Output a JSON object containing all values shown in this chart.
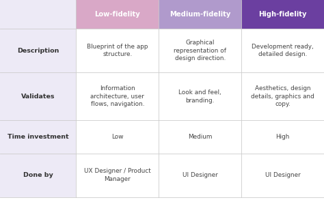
{
  "header_labels": [
    "Low-fidelity",
    "Medium-fidelity",
    "High-fidelity"
  ],
  "header_colors": [
    "#d9a8c7",
    "#b09acc",
    "#6b3fa0"
  ],
  "header_text_color": "#ffffff",
  "row_labels": [
    "Description",
    "Validates",
    "Time investment",
    "Done by"
  ],
  "row_bg_color": "#edeaf6",
  "cell_bg_color": "#ffffff",
  "grid_line_color": "#cccccc",
  "body_text_color": "#444444",
  "row_label_color": "#333333",
  "cells": [
    [
      "Blueprint of the app\nstructure.",
      "Graphical\nrepresentation of\ndesign direction.",
      "Development ready,\ndetailed design."
    ],
    [
      "Information\narchitecture, user\nflows, navigation.",
      "Look and feel,\nbranding.",
      "Aesthetics, design\ndetails, graphics and\ncopy."
    ],
    [
      "Low",
      "Medium",
      "High"
    ],
    [
      "UX Designer / Product\nManager",
      "UI Designer",
      "UI Designer"
    ]
  ],
  "figsize": [
    4.74,
    3.12
  ],
  "dpi": 100
}
